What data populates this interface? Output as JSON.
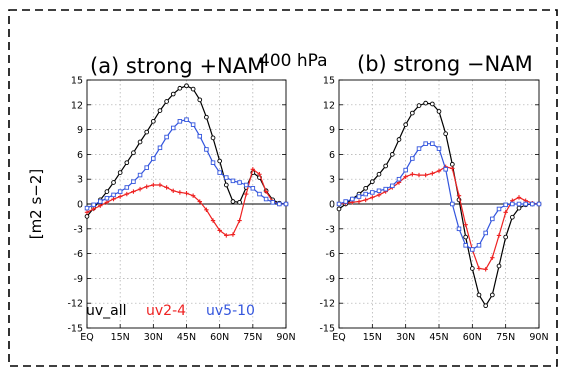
{
  "figure": {
    "level_label": "400 hPa",
    "ylabel": "[m2 s−2]"
  },
  "chart_data": [
    {
      "type": "line",
      "title": "(a) strong +NAM",
      "xlabel": "",
      "ylabel": "[m2 s−2]",
      "x_ticks": [
        "EQ",
        "15N",
        "30N",
        "45N",
        "60N",
        "75N",
        "90N"
      ],
      "xlim": [
        0,
        90
      ],
      "ylim": [
        -15,
        15
      ],
      "y_ticks": [
        -15,
        -12,
        -9,
        -6,
        -3,
        0,
        3,
        6,
        9,
        12,
        15
      ],
      "grid": true,
      "legend": "bottom-left, inline",
      "x": [
        0,
        3,
        6,
        9,
        12,
        15,
        18,
        21,
        24,
        27,
        30,
        33,
        36,
        39,
        42,
        45,
        48,
        51,
        54,
        57,
        60,
        63,
        66,
        69,
        72,
        75,
        78,
        81,
        84,
        87,
        90
      ],
      "series": [
        {
          "name": "uv_all",
          "color": "#000000",
          "marker": "circle",
          "values": [
            -1.5,
            -0.5,
            0.5,
            1.5,
            2.6,
            3.8,
            5.0,
            6.2,
            7.5,
            8.7,
            10.0,
            11.3,
            12.4,
            13.3,
            14.0,
            14.3,
            13.9,
            12.6,
            10.5,
            8.0,
            5.2,
            2.3,
            0.3,
            0.2,
            2.0,
            3.8,
            3.2,
            1.6,
            0.5,
            0.1,
            0.0
          ]
        },
        {
          "name": "uv2-4",
          "color": "#ee2222",
          "marker": "plus",
          "values": [
            -1.0,
            -0.6,
            -0.2,
            0.2,
            0.6,
            0.9,
            1.2,
            1.5,
            1.8,
            2.1,
            2.3,
            2.3,
            2.0,
            1.6,
            1.4,
            1.3,
            1.0,
            0.3,
            -0.7,
            -2.0,
            -3.2,
            -3.8,
            -3.7,
            -2.0,
            1.2,
            4.2,
            3.6,
            1.5,
            0.3,
            0.0,
            0.0
          ]
        },
        {
          "name": "uv5-10",
          "color": "#3355dd",
          "marker": "square",
          "values": [
            -0.5,
            -0.1,
            0.3,
            0.7,
            1.1,
            1.5,
            2.0,
            2.7,
            3.5,
            4.4,
            5.5,
            6.8,
            8.1,
            9.2,
            10.0,
            10.2,
            9.6,
            8.2,
            6.6,
            5.0,
            3.8,
            3.2,
            2.8,
            2.6,
            2.3,
            1.9,
            1.2,
            0.6,
            0.2,
            0.0,
            0.0
          ]
        }
      ]
    },
    {
      "type": "line",
      "title": "(b) strong −NAM",
      "xlabel": "",
      "ylabel": "",
      "x_ticks": [
        "EQ",
        "15N",
        "30N",
        "45N",
        "60N",
        "75N",
        "90N"
      ],
      "xlim": [
        0,
        90
      ],
      "ylim": [
        -15,
        15
      ],
      "y_ticks": [
        -15,
        -12,
        -9,
        -6,
        -3,
        0,
        3,
        6,
        9,
        12,
        15
      ],
      "grid": true,
      "x": [
        0,
        3,
        6,
        9,
        12,
        15,
        18,
        21,
        24,
        27,
        30,
        33,
        36,
        39,
        42,
        45,
        48,
        51,
        54,
        57,
        60,
        63,
        66,
        69,
        72,
        75,
        78,
        81,
        84,
        87,
        90
      ],
      "series": [
        {
          "name": "uv_all",
          "color": "#000000",
          "marker": "circle",
          "values": [
            -0.6,
            0.0,
            0.6,
            1.2,
            1.9,
            2.7,
            3.6,
            4.6,
            6.0,
            7.8,
            9.6,
            11.0,
            11.9,
            12.2,
            12.1,
            11.2,
            8.5,
            4.8,
            0.5,
            -4.0,
            -7.8,
            -11.0,
            -12.3,
            -11.0,
            -7.5,
            -4.0,
            -1.6,
            -0.5,
            -0.1,
            0.0,
            0.0
          ]
        },
        {
          "name": "uv2-4",
          "color": "#ee2222",
          "marker": "plus",
          "values": [
            0.0,
            0.1,
            0.2,
            0.3,
            0.5,
            0.8,
            1.1,
            1.5,
            2.0,
            2.6,
            3.3,
            3.6,
            3.5,
            3.5,
            3.7,
            4.0,
            4.5,
            4.3,
            1.0,
            -2.5,
            -5.5,
            -7.8,
            -7.9,
            -6.5,
            -3.8,
            -1.0,
            0.4,
            0.8,
            0.4,
            0.1,
            0.0
          ]
        },
        {
          "name": "uv5-10",
          "color": "#3355dd",
          "marker": "square",
          "values": [
            0.0,
            0.3,
            0.6,
            0.9,
            1.2,
            1.4,
            1.6,
            1.8,
            2.2,
            3.0,
            4.1,
            5.5,
            6.7,
            7.3,
            7.3,
            6.7,
            4.2,
            0.0,
            -3.0,
            -5.0,
            -5.5,
            -5.0,
            -3.5,
            -1.8,
            -0.6,
            -0.1,
            0.0,
            0.0,
            0.0,
            0.0,
            0.0
          ]
        }
      ]
    }
  ]
}
